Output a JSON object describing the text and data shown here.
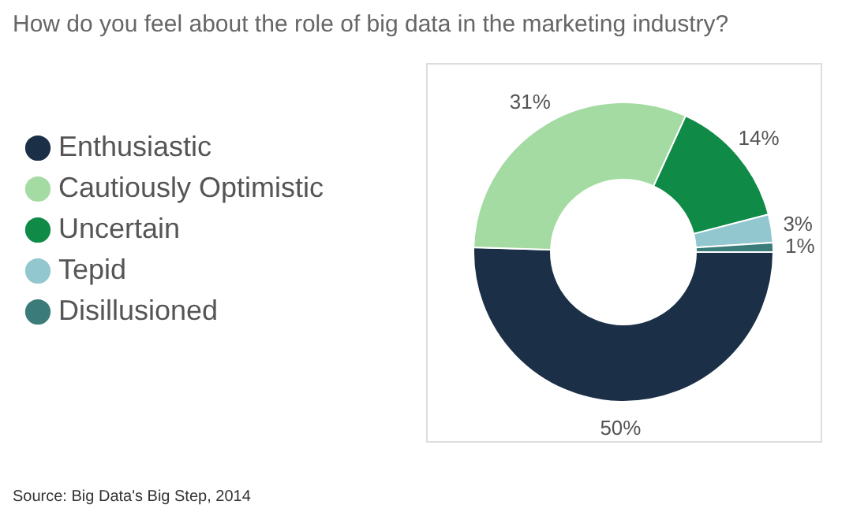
{
  "chart_data": {
    "type": "donut",
    "title": "How do you feel about the role of big data in the marketing industry?",
    "categories": [
      "Enthusiastic",
      "Cautiously Optimistic",
      "Uncertain",
      "Tepid",
      "Disillusioned"
    ],
    "values": [
      50,
      31,
      14,
      3,
      1
    ],
    "colors": [
      "#1b2f47",
      "#a4dba2",
      "#0f8a47",
      "#92c7cf",
      "#3b7c7a"
    ],
    "value_labels": [
      "50%",
      "31%",
      "14%",
      "3%",
      "1%"
    ],
    "legend": "left",
    "annotations": [
      "Source: Big Data's Big Step, 2014"
    ]
  }
}
